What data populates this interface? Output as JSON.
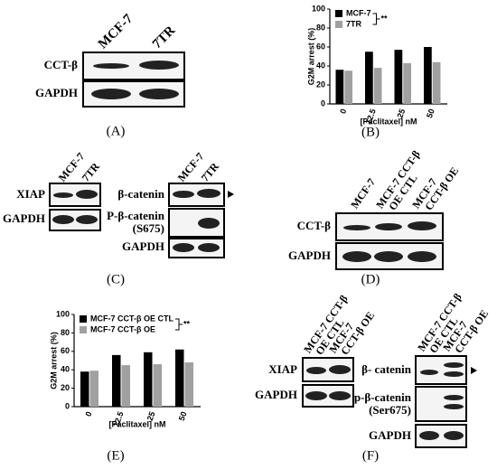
{
  "panels": {
    "A": {
      "label": "(A)",
      "lanes": [
        "MCF-7",
        "7TR"
      ],
      "rows": [
        "CCT-β",
        "GAPDH"
      ]
    },
    "B": {
      "label": "(B)"
    },
    "C": {
      "label": "(C)",
      "left": {
        "lanes": [
          "MCF-7",
          "7TR"
        ],
        "rows": [
          "XIAP",
          "GAPDH"
        ]
      },
      "right": {
        "lanes": [
          "MCF-7",
          "7TR"
        ],
        "rows": [
          "β-catenin",
          [
            "P-β-catenin",
            "(S675)"
          ],
          "GAPDH"
        ]
      }
    },
    "D": {
      "label": "(D)",
      "lanes": [
        [
          "MCF-7"
        ],
        [
          "MCF-7 CCT-β",
          "OE CTL"
        ],
        [
          "MCF-7",
          "CCT-β OE"
        ]
      ],
      "rows": [
        "CCT-β",
        "GAPDH"
      ]
    },
    "E": {
      "label": "(E)"
    },
    "F": {
      "label": "(F)",
      "left": {
        "lanes": [
          [
            "MCF-7 CCT-β",
            "OE CTL"
          ],
          [
            "MCF-7",
            "CCT-β OE"
          ]
        ],
        "rows": [
          "XIAP",
          "GAPDH"
        ]
      },
      "right": {
        "lanes": [
          [
            "MCF-7 CCT-β",
            "OE CTL"
          ],
          [
            "MCF-7",
            "CCT-β OE"
          ]
        ],
        "rows": [
          "β- catenin",
          [
            "p-β-catenin",
            "(Ser675)"
          ],
          "GAPDH"
        ]
      }
    }
  },
  "chart_data": [
    {
      "type": "bar",
      "y_label": "G2M arrest (%)",
      "x_label": "[Paclitaxel] nM",
      "annotation": "**",
      "categories": [
        "0",
        "12.5",
        "25",
        "50"
      ],
      "series": [
        {
          "name": "MCF-7",
          "color": "#000000",
          "values": [
            36,
            55,
            57,
            60
          ]
        },
        {
          "name": "7TR",
          "color": "#a0a0a0",
          "values": [
            35,
            38,
            43,
            44
          ]
        }
      ],
      "ylim": [
        0,
        100
      ],
      "yticks": [
        0,
        20,
        40,
        60,
        80,
        100
      ]
    },
    {
      "type": "bar",
      "y_label": "G2M arrest (%)",
      "x_label": "[Paclitaxel] nM",
      "annotation": "**",
      "categories": [
        "0",
        "12.5",
        "25",
        "50"
      ],
      "series": [
        {
          "name": "MCF-7 CCT-β OE CTL",
          "color": "#000000",
          "values": [
            38,
            56,
            59,
            62
          ]
        },
        {
          "name": "MCF-7 CCT-β OE",
          "color": "#a0a0a0",
          "values": [
            39,
            45,
            46,
            48
          ]
        }
      ],
      "ylim": [
        0,
        100
      ],
      "yticks": [
        0,
        20,
        40,
        60,
        80,
        100
      ]
    }
  ]
}
